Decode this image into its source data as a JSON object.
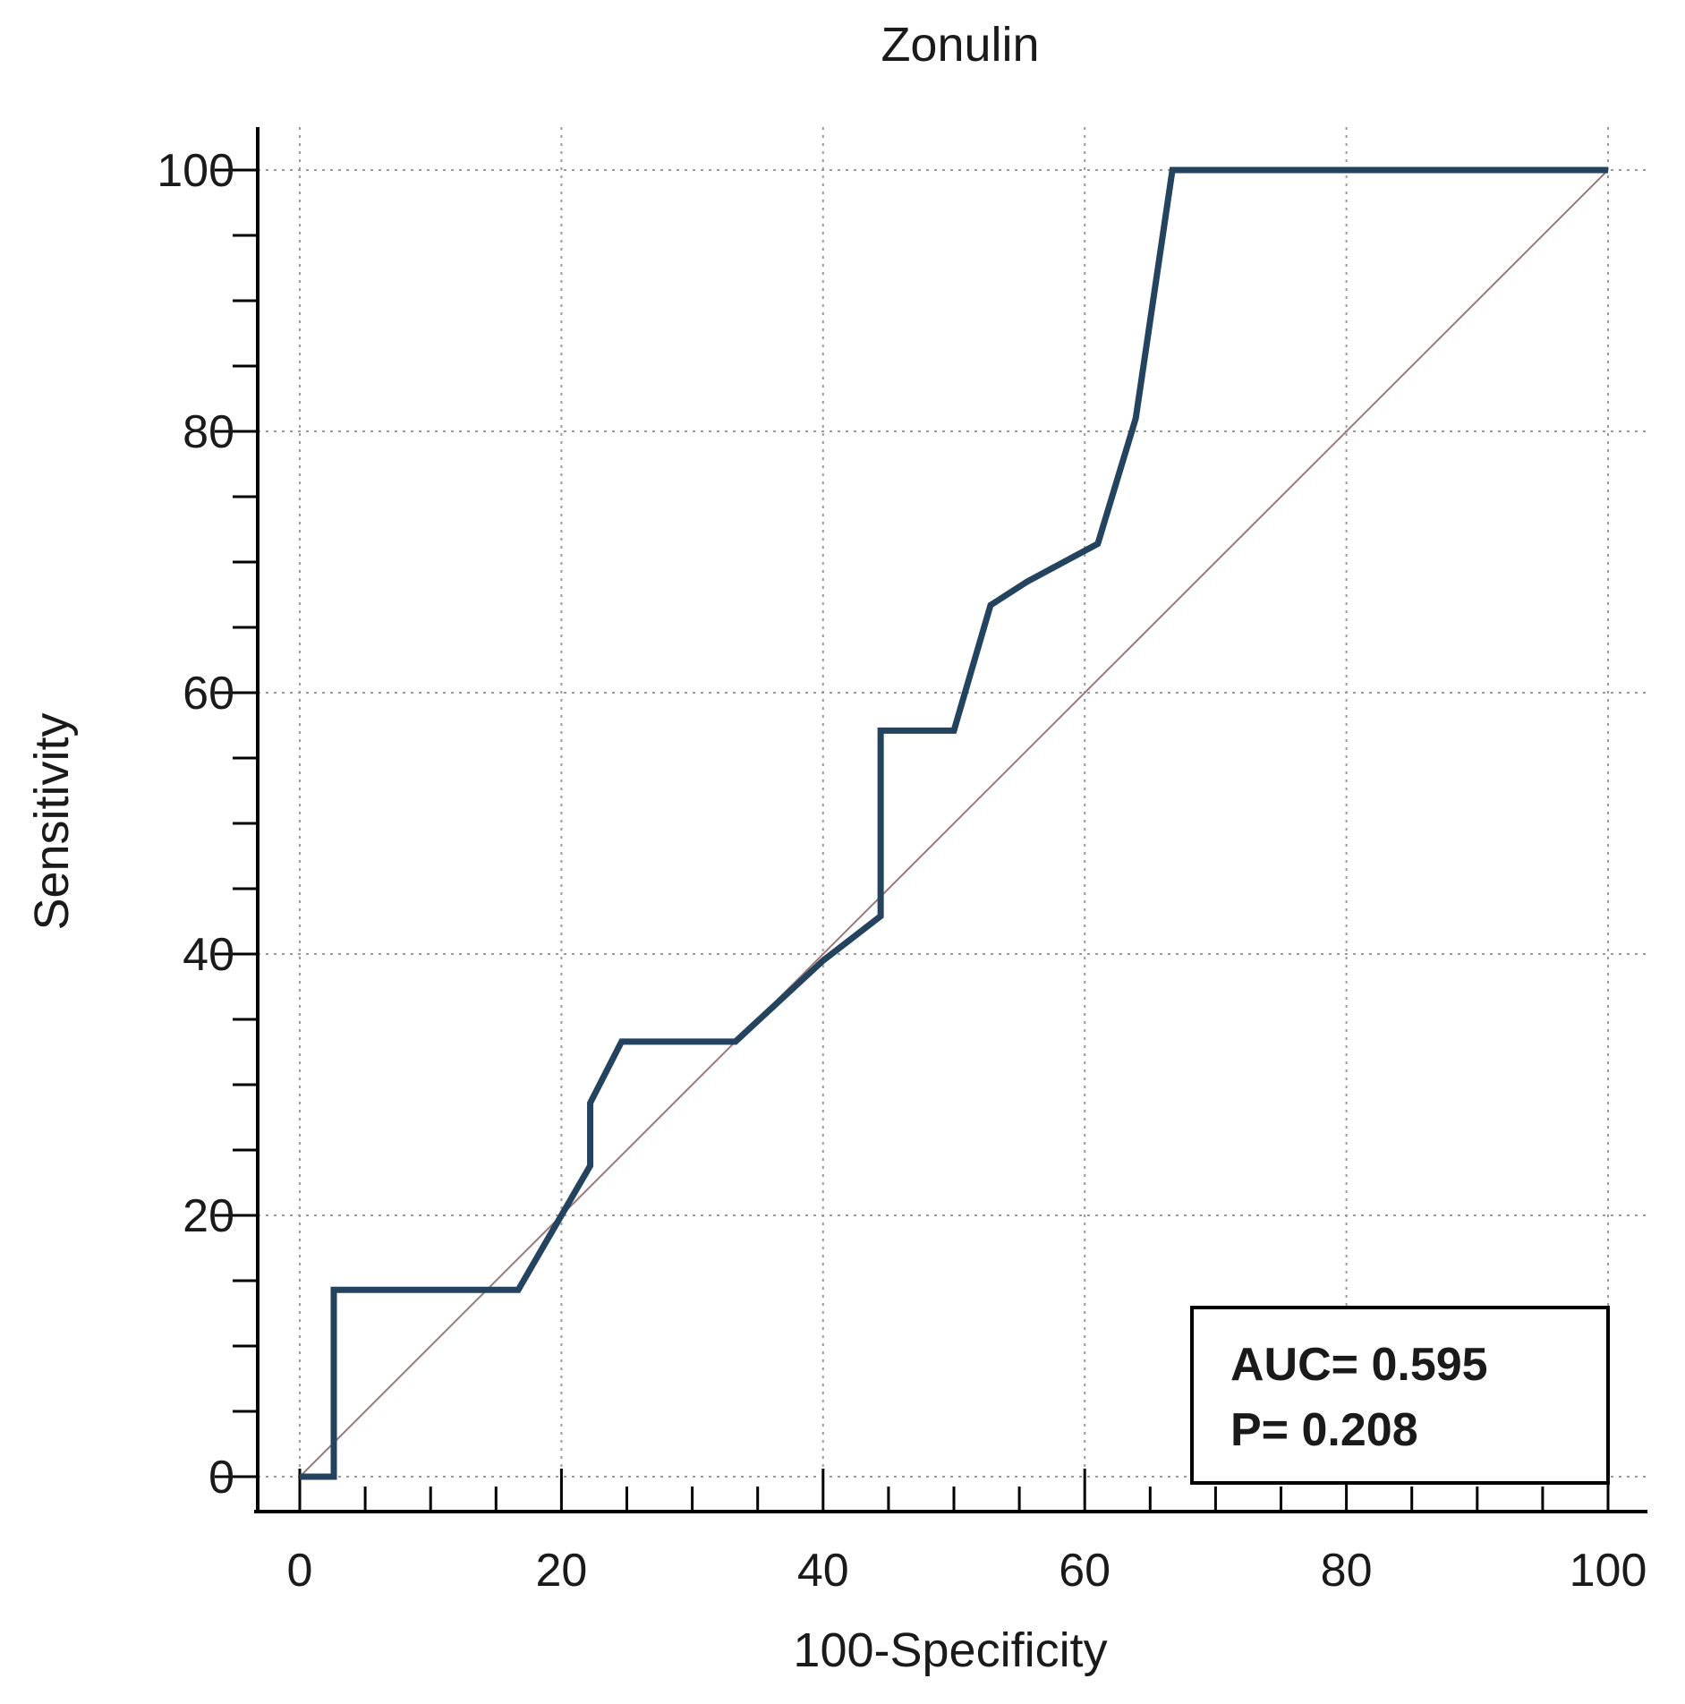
{
  "chart_data": {
    "type": "line",
    "title": "Zonulin",
    "xlabel": "100-Specificity",
    "ylabel": "Sensitivity",
    "xlim": [
      0,
      100
    ],
    "ylim": [
      0,
      100
    ],
    "xticks": [
      0,
      20,
      40,
      60,
      80,
      100
    ],
    "yticks": [
      0,
      20,
      40,
      60,
      80,
      100
    ],
    "xtick_labels": [
      "0",
      "20",
      "40",
      "60",
      "80",
      "100"
    ],
    "ytick_labels": [
      "0",
      "20",
      "40",
      "60",
      "80",
      "100"
    ],
    "grid": true,
    "series": [
      {
        "points": [
          [
            0,
            0
          ],
          [
            2.6,
            0
          ],
          [
            2.6,
            14.3
          ],
          [
            16.7,
            14.3
          ],
          [
            20,
            20
          ],
          [
            22.2,
            23.8
          ],
          [
            22.2,
            28.6
          ],
          [
            24.6,
            33.3
          ],
          [
            33.3,
            33.3
          ],
          [
            40,
            39.5
          ],
          [
            44.4,
            42.9
          ],
          [
            44.4,
            57.1
          ],
          [
            50,
            57.1
          ],
          [
            52.8,
            66.7
          ],
          [
            55.6,
            68.5
          ],
          [
            61,
            71.4
          ],
          [
            63.9,
            81
          ],
          [
            66.7,
            100
          ],
          [
            100,
            100
          ]
        ],
        "color": "#24435f"
      }
    ],
    "reference_line": {
      "points": [
        [
          0,
          0
        ],
        [
          100,
          100
        ]
      ],
      "color": "#9a7a7a"
    },
    "annotations": {
      "auc": "AUC= 0.595",
      "p": "P= 0.208",
      "placement": "bottom-right"
    }
  }
}
